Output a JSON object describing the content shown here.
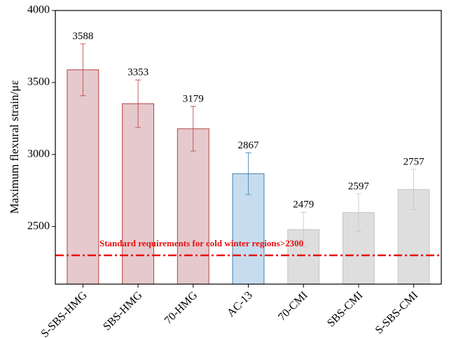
{
  "chart_data": {
    "type": "bar",
    "ylabel": "Maximum flexural strain/με",
    "categories": [
      "S-SBS-HMG",
      "SBS-HMG",
      "70-HMG",
      "AC-13",
      "70-CMI",
      "SBS-CMI",
      "S-SBS-CMI"
    ],
    "values": [
      3588,
      3353,
      3179,
      2867,
      2479,
      2597,
      2757
    ],
    "errors": [
      180,
      165,
      155,
      145,
      120,
      130,
      140
    ],
    "colors": [
      "#e6c9cc",
      "#e6c9cc",
      "#e6c9cc",
      "#c6ddef",
      "#dedede",
      "#dedede",
      "#dedede"
    ],
    "edge_colors": [
      "#b5403f",
      "#b5403f",
      "#b5403f",
      "#3f7fae",
      "#c4c4c4",
      "#c4c4c4",
      "#c4c4c4"
    ],
    "ylim": [
      2100,
      4000
    ],
    "yticks": [
      2500,
      3000,
      3500,
      4000
    ],
    "reference_line": {
      "value": 2300,
      "color": "#e8100f",
      "label": "Standard requirements for cold winter regions>2300"
    }
  }
}
